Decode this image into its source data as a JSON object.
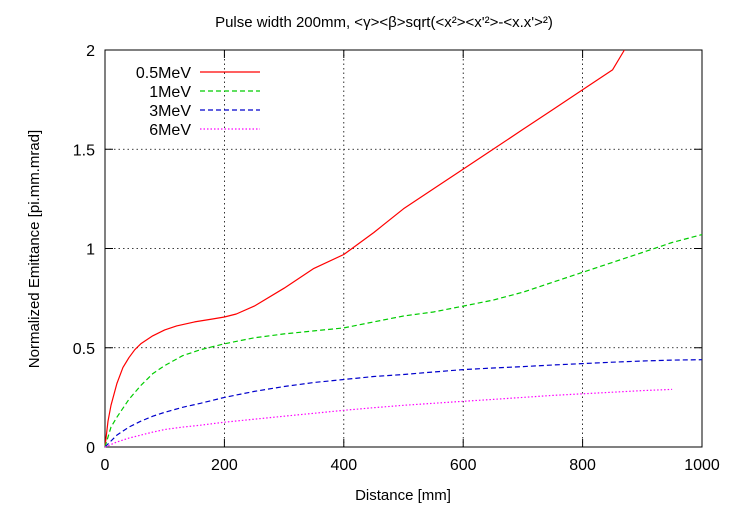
{
  "chart_data": {
    "type": "line",
    "title": "Pulse width 200mm, <γ><β>sqrt(<x²><x'²>-<x.x'>²)",
    "xlabel": "Distance [mm]",
    "ylabel": "Normalized Emittance  [pi.mm.mrad]",
    "xlim": [
      0,
      1000
    ],
    "ylim": [
      0,
      2
    ],
    "xticks": [
      0,
      200,
      400,
      600,
      800,
      1000
    ],
    "xtick_labels": [
      "0",
      "200",
      "400",
      "600",
      "800",
      "1000"
    ],
    "yticks": [
      0,
      0.5,
      1,
      1.5,
      2
    ],
    "ytick_labels": [
      "0",
      "0.5",
      "1",
      "1.5",
      "2"
    ],
    "grid": true,
    "legend_position": "top-left",
    "series": [
      {
        "name": "0.5MeV",
        "color": "#ff0000",
        "dash": "solid",
        "x": [
          0,
          5,
          10,
          20,
          30,
          40,
          50,
          60,
          80,
          100,
          120,
          150,
          180,
          200,
          220,
          250,
          300,
          350,
          400,
          450,
          500,
          550,
          600,
          650,
          700,
          750,
          800,
          850,
          870
        ],
        "y": [
          0,
          0.13,
          0.21,
          0.32,
          0.4,
          0.45,
          0.49,
          0.52,
          0.56,
          0.59,
          0.61,
          0.63,
          0.645,
          0.655,
          0.67,
          0.71,
          0.8,
          0.9,
          0.97,
          1.08,
          1.2,
          1.3,
          1.4,
          1.5,
          1.6,
          1.7,
          1.8,
          1.9,
          2.0
        ]
      },
      {
        "name": "1MeV",
        "color": "#00cc00",
        "dash": "dashed",
        "x": [
          0,
          10,
          20,
          40,
          60,
          80,
          100,
          130,
          160,
          200,
          250,
          300,
          350,
          400,
          450,
          500,
          550,
          600,
          650,
          700,
          750,
          800,
          850,
          900,
          950,
          1000
        ],
        "y": [
          0,
          0.1,
          0.15,
          0.24,
          0.31,
          0.37,
          0.41,
          0.46,
          0.49,
          0.52,
          0.55,
          0.57,
          0.585,
          0.6,
          0.63,
          0.66,
          0.68,
          0.71,
          0.74,
          0.78,
          0.83,
          0.88,
          0.93,
          0.98,
          1.03,
          1.07
        ]
      },
      {
        "name": "3MeV",
        "color": "#0000cc",
        "dash": "dashed",
        "x": [
          0,
          10,
          20,
          40,
          60,
          80,
          100,
          130,
          160,
          200,
          250,
          300,
          350,
          400,
          450,
          500,
          550,
          600,
          650,
          700,
          750,
          800,
          850,
          900,
          950,
          1000
        ],
        "y": [
          0,
          0.03,
          0.06,
          0.1,
          0.13,
          0.155,
          0.175,
          0.2,
          0.22,
          0.25,
          0.28,
          0.305,
          0.325,
          0.34,
          0.355,
          0.365,
          0.378,
          0.39,
          0.398,
          0.405,
          0.413,
          0.42,
          0.427,
          0.433,
          0.438,
          0.44
        ]
      },
      {
        "name": "6MeV",
        "color": "#ff00ff",
        "dash": "dotted",
        "x": [
          0,
          20,
          40,
          60,
          80,
          100,
          130,
          160,
          200,
          250,
          300,
          350,
          400,
          450,
          500,
          550,
          600,
          650,
          700,
          750,
          800,
          850,
          900,
          950
        ],
        "y": [
          0,
          0.025,
          0.045,
          0.06,
          0.075,
          0.088,
          0.1,
          0.11,
          0.125,
          0.14,
          0.155,
          0.17,
          0.185,
          0.198,
          0.21,
          0.22,
          0.23,
          0.24,
          0.25,
          0.26,
          0.268,
          0.276,
          0.284,
          0.29
        ]
      }
    ]
  }
}
